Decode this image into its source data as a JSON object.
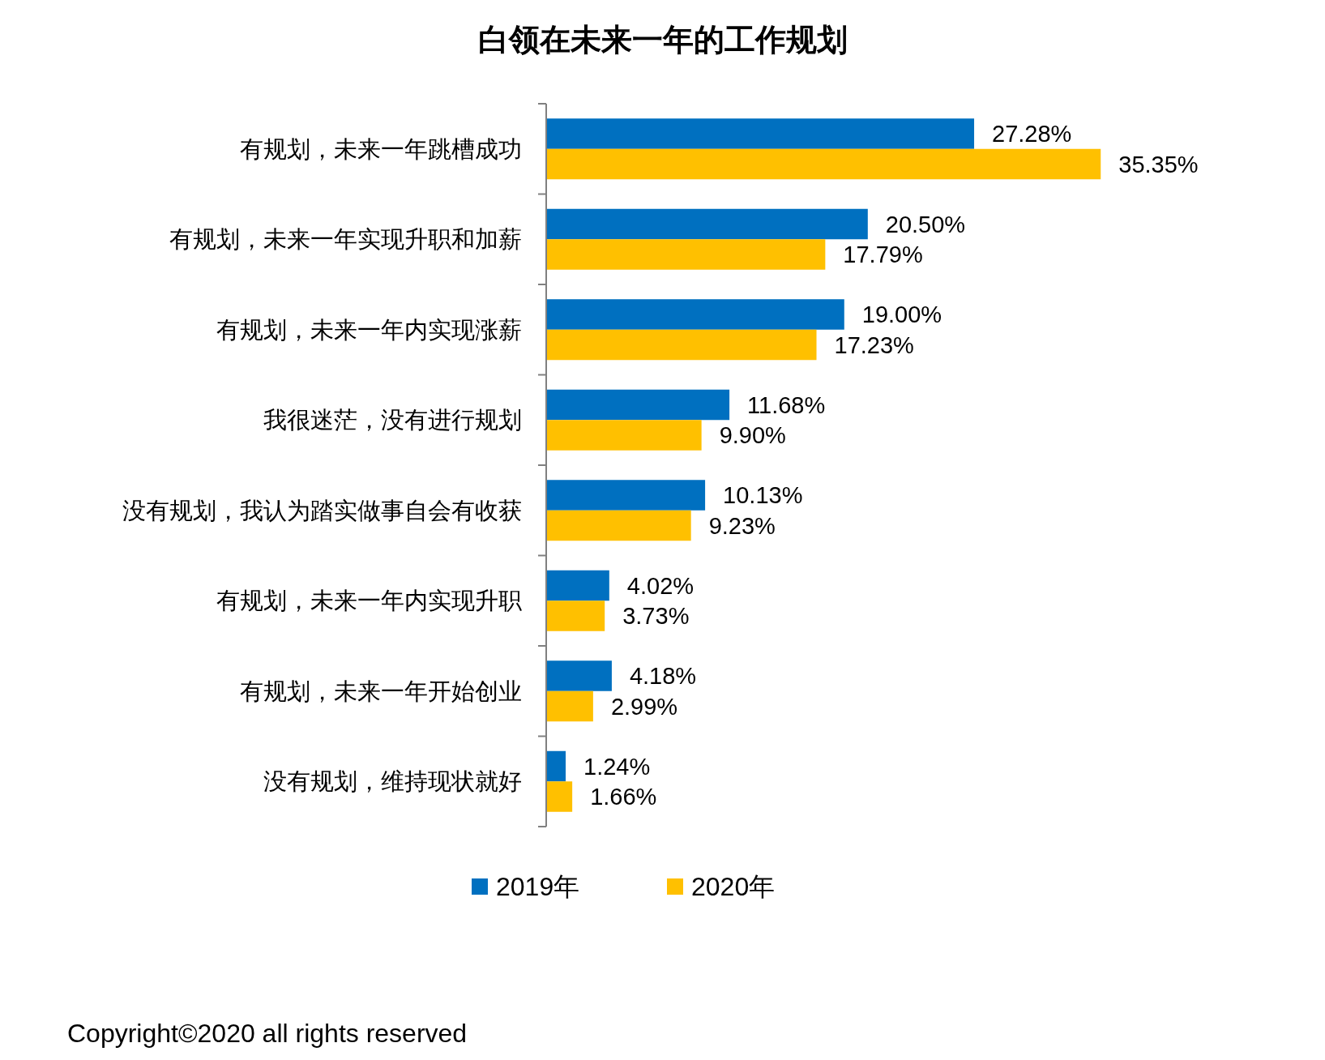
{
  "chart_data": {
    "type": "bar",
    "orientation": "horizontal",
    "title": "白领在未来一年的工作规划",
    "categories": [
      "有规划，未来一年跳槽成功",
      "有规划，未来一年实现升职和加薪",
      "有规划，未来一年内实现涨薪",
      "我很迷茫，没有进行规划",
      "没有规划，我认为踏实做事自会有收获",
      "有规划，未来一年内实现升职",
      "有规划，未来一年开始创业",
      "没有规划，维持现状就好"
    ],
    "series": [
      {
        "name": "2019年",
        "color": "#0070c0",
        "values": [
          27.28,
          20.5,
          19.0,
          11.68,
          10.13,
          4.02,
          4.18,
          1.24
        ],
        "value_labels": [
          "27.28%",
          "20.50%",
          "19.00%",
          "11.68%",
          "10.13%",
          "4.02%",
          "4.18%",
          "1.24%"
        ]
      },
      {
        "name": "2020年",
        "color": "#ffc000",
        "values": [
          35.35,
          17.79,
          17.23,
          9.9,
          9.23,
          3.73,
          2.99,
          1.66
        ],
        "value_labels": [
          "35.35%",
          "17.79%",
          "17.23%",
          "9.90%",
          "9.23%",
          "3.73%",
          "2.99%",
          "1.66%"
        ]
      }
    ],
    "legend": "bottom",
    "annotations": [
      "Copyright©2020 all rights reserved"
    ]
  }
}
